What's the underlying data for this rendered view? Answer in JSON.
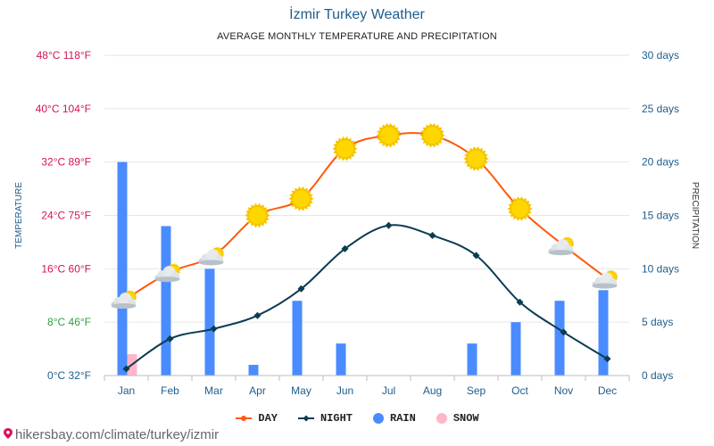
{
  "title": "İzmir Turkey Weather",
  "subtitle": "AVERAGE MONTHLY TEMPERATURE AND PRECIPITATION",
  "watermark": "hikersbay.com/climate/turkey/izmir",
  "colors": {
    "day": "#ff5a0a",
    "night": "#0b3c52",
    "rain": "#4a8cff",
    "snow": "#ffb6c8",
    "left_axis_hot": "#d4145a",
    "left_axis_mild": "#2e9e44",
    "left_axis_cold": "#1f5d8c",
    "right_axis": "#1f5d8c",
    "grid": "#e6e6e6",
    "sun": "#ffd700",
    "cloud": "#cfd6dc"
  },
  "legend": [
    {
      "key": "day",
      "label": "DAY",
      "icon": "line-dot"
    },
    {
      "key": "night",
      "label": "NIGHT",
      "icon": "line-diamond"
    },
    {
      "key": "rain",
      "label": "RAIN",
      "icon": "circle"
    },
    {
      "key": "snow",
      "label": "SNOW",
      "icon": "circle"
    }
  ],
  "chart_data": {
    "type": "bar-line",
    "title": "İzmir Turkey Weather",
    "subtitle": "AVERAGE MONTHLY TEMPERATURE AND PRECIPITATION",
    "categories": [
      "Jan",
      "Feb",
      "Mar",
      "Apr",
      "May",
      "Jun",
      "Jul",
      "Aug",
      "Sep",
      "Oct",
      "Nov",
      "Dec"
    ],
    "y_left": {
      "label": "TEMPERATURE",
      "unit": "°C",
      "range": [
        0,
        48
      ],
      "ticks": [
        {
          "value": 0,
          "label": "0°C 32°F",
          "tone": "cold"
        },
        {
          "value": 8,
          "label": "8°C 46°F",
          "tone": "mild"
        },
        {
          "value": 16,
          "label": "16°C 60°F",
          "tone": "hot"
        },
        {
          "value": 24,
          "label": "24°C 75°F",
          "tone": "hot"
        },
        {
          "value": 32,
          "label": "32°C 89°F",
          "tone": "hot"
        },
        {
          "value": 40,
          "label": "40°C 104°F",
          "tone": "hot"
        },
        {
          "value": 48,
          "label": "48°C 118°F",
          "tone": "hot"
        }
      ]
    },
    "y_right": {
      "label": "PRECIPITATION",
      "unit": "days",
      "range": [
        0,
        30
      ],
      "ticks": [
        {
          "value": 0,
          "label": "0 days"
        },
        {
          "value": 5,
          "label": "5 days"
        },
        {
          "value": 10,
          "label": "10 days"
        },
        {
          "value": 15,
          "label": "15 days"
        },
        {
          "value": 20,
          "label": "20 days"
        },
        {
          "value": 25,
          "label": "25 days"
        },
        {
          "value": 30,
          "label": "30 days"
        }
      ]
    },
    "series": [
      {
        "name": "DAY",
        "kind": "line",
        "axis": "left",
        "unit": "°C",
        "values": [
          11.5,
          15.5,
          18,
          24,
          26.5,
          34,
          36,
          36,
          32.5,
          25,
          19.5,
          14.5
        ],
        "icons": [
          "partly-cloudy",
          "partly-cloudy",
          "partly-cloudy",
          "sun",
          "sun",
          "sun",
          "sun",
          "sun",
          "sun",
          "sun",
          "partly-cloudy",
          "partly-cloudy"
        ]
      },
      {
        "name": "NIGHT",
        "kind": "line",
        "axis": "left",
        "unit": "°C",
        "values": [
          1,
          5.5,
          7,
          9,
          13,
          19,
          22.5,
          21,
          18,
          11,
          6.5,
          2.5
        ]
      },
      {
        "name": "RAIN",
        "kind": "bar",
        "axis": "right",
        "unit": "days",
        "values": [
          20,
          14,
          10,
          1,
          7,
          3,
          0,
          0,
          3,
          5,
          7,
          8
        ]
      },
      {
        "name": "SNOW",
        "kind": "bar",
        "axis": "right",
        "unit": "days",
        "values": [
          2,
          0,
          0,
          0,
          0,
          0,
          0,
          0,
          0,
          0,
          0,
          0
        ]
      }
    ],
    "grid": true,
    "legend_position": "bottom-center"
  }
}
